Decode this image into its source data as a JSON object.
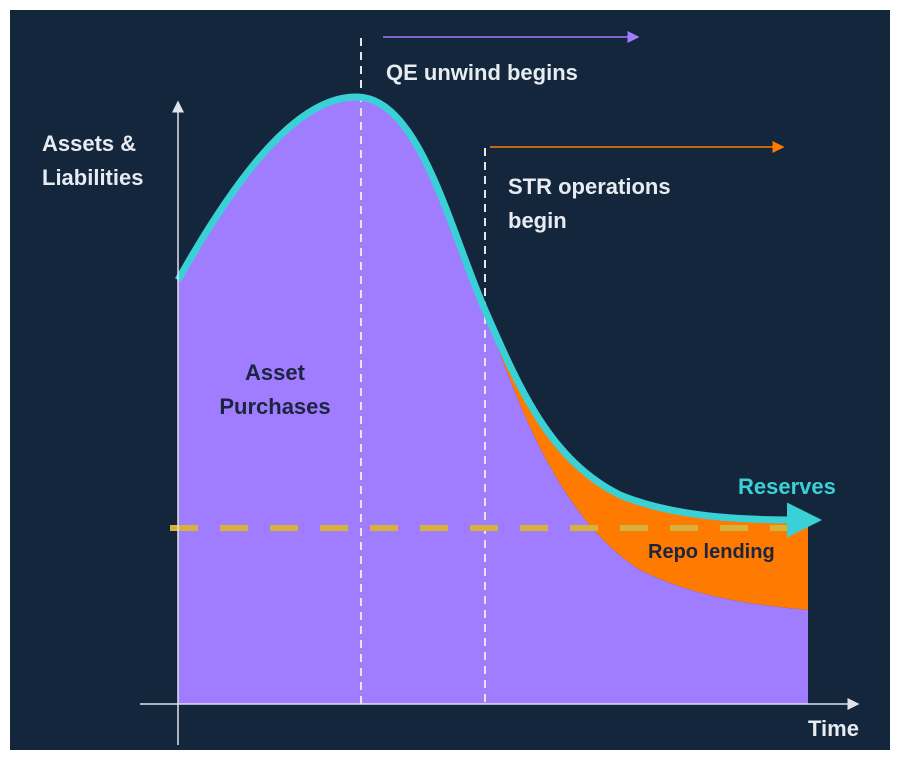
{
  "y_axis_label": "Assets & Liabilities",
  "x_axis_label": "Time",
  "annotations": [
    {
      "label": "QE unwind begins"
    },
    {
      "label": "STR operations begin"
    }
  ],
  "regions": [
    {
      "label": "Asset Purchases"
    },
    {
      "label": "Repo lending"
    }
  ],
  "lines": [
    {
      "label": "Reserves"
    }
  ]
}
